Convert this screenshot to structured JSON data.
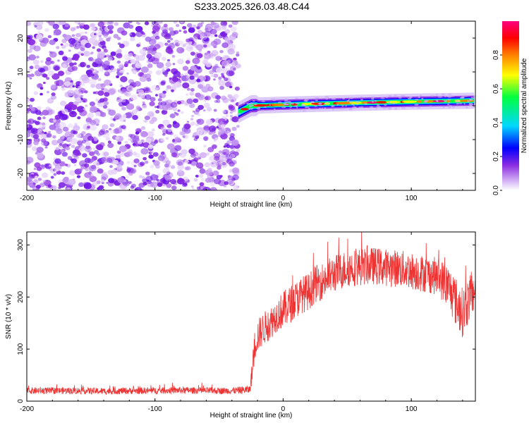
{
  "figure": {
    "title": "S233.2025.326.03.48.C44"
  },
  "chart_data": [
    {
      "type": "heatmap",
      "title": "",
      "xlabel": "Height of straight line (km)",
      "ylabel": "Frequency (Hz)",
      "xlim": [
        -200,
        150
      ],
      "ylim": [
        -25,
        25
      ],
      "xticks": [
        -200,
        -100,
        0,
        100
      ],
      "yticks": [
        -20,
        -10,
        0,
        10,
        20
      ],
      "colorbar": {
        "label": "Normalized spectral amplitude",
        "range": [
          0,
          1
        ],
        "ticks": [
          0.0,
          0.2,
          0.4,
          0.6,
          0.8
        ],
        "colormap": [
          "#ffffff",
          "#8a2be2",
          "#0000ff",
          "#00d8ff",
          "#00ff40",
          "#ffff00",
          "#ff8000",
          "#ff0000",
          "#ff0080"
        ]
      },
      "features": {
        "noise_region_x": [
          -200,
          -35
        ],
        "signal_onset_x": -35,
        "signal_band_frequency_hz": [
          {
            "x": -35,
            "f": -2
          },
          {
            "x": -25,
            "f": 0
          },
          {
            "x": 0,
            "f": 0.3
          },
          {
            "x": 50,
            "f": 0.8
          },
          {
            "x": 100,
            "f": 1.2
          },
          {
            "x": 150,
            "f": 1.5
          }
        ],
        "signal_band_width_hz": 1.5
      }
    },
    {
      "type": "line",
      "title": "",
      "xlabel": "Height of straight line (km)",
      "ylabel": "SNR (10 * v/v)",
      "xlim": [
        -200,
        150
      ],
      "ylim": [
        0,
        325
      ],
      "xticks": [
        -200,
        -100,
        0,
        100
      ],
      "yticks": [
        0,
        100,
        200,
        300
      ],
      "series": [
        {
          "name": "SNR",
          "color": "#ee3333",
          "x": [
            -200,
            -180,
            -160,
            -140,
            -120,
            -100,
            -80,
            -60,
            -40,
            -26,
            -24,
            -22,
            -20,
            -15,
            -10,
            -5,
            0,
            5,
            10,
            15,
            20,
            25,
            30,
            40,
            50,
            60,
            70,
            80,
            90,
            100,
            110,
            120,
            125,
            130,
            135,
            140,
            145,
            150
          ],
          "y": [
            20,
            20,
            20,
            19,
            20,
            20,
            21,
            20,
            20,
            22,
            60,
            110,
            125,
            140,
            150,
            165,
            175,
            185,
            195,
            205,
            210,
            225,
            230,
            245,
            255,
            258,
            260,
            257,
            255,
            250,
            245,
            240,
            230,
            215,
            190,
            170,
            195,
            215
          ],
          "noise_amplitude": [
            8,
            8,
            8,
            8,
            8,
            8,
            8,
            8,
            8,
            10,
            30,
            40,
            40,
            40,
            40,
            40,
            45,
            45,
            45,
            45,
            45,
            45,
            45,
            45,
            45,
            45,
            45,
            45,
            45,
            45,
            45,
            45,
            50,
            55,
            60,
            60,
            55,
            50
          ]
        }
      ]
    }
  ]
}
